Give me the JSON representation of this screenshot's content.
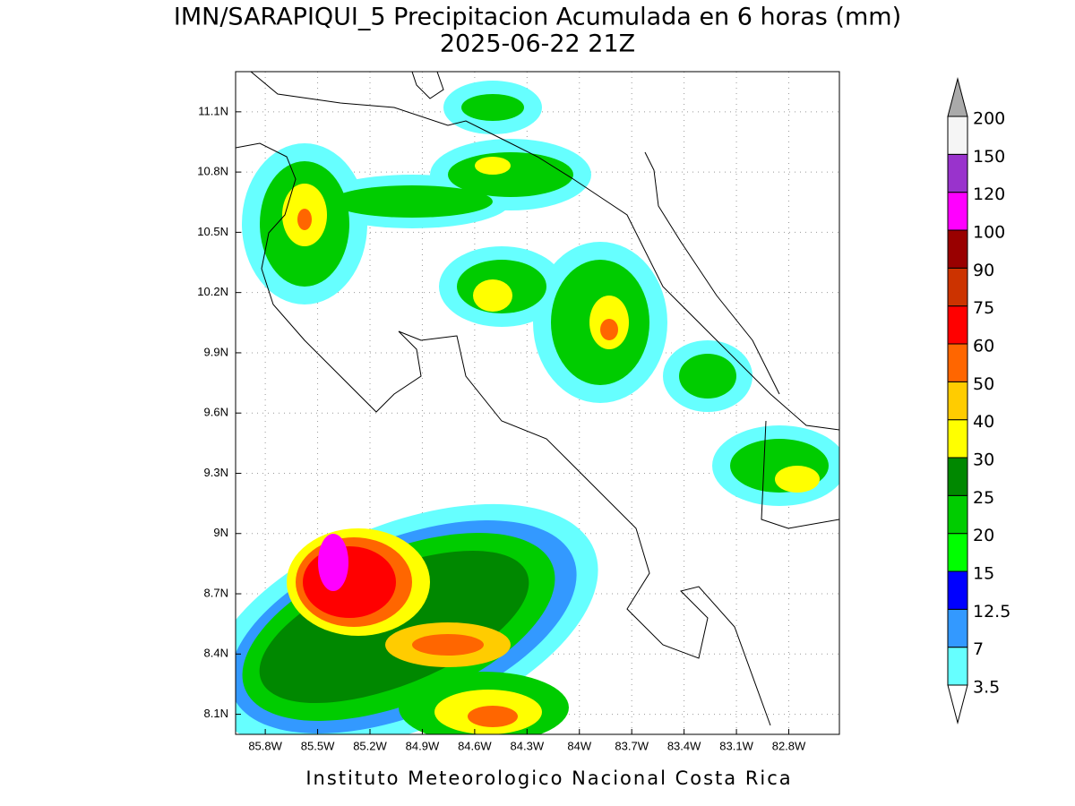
{
  "map": {
    "title": "IMN/SARAPIQUI_5 Precipitacion Acumulada en 6 horas (mm)",
    "subtitle": "2025-06-22 21Z",
    "footer": "Instituto Meteorologico Nacional Costa Rica",
    "xlim": [
      -85.97,
      -82.51
    ],
    "ylim": [
      8.0,
      11.3
    ],
    "lon_ticks": [
      {
        "value": -85.8,
        "label": "85.8W"
      },
      {
        "value": -85.5,
        "label": "85.5W"
      },
      {
        "value": -85.2,
        "label": "85.2W"
      },
      {
        "value": -84.9,
        "label": "84.9W"
      },
      {
        "value": -84.6,
        "label": "84.6W"
      },
      {
        "value": -84.3,
        "label": "84.3W"
      },
      {
        "value": -84.0,
        "label": "84W"
      },
      {
        "value": -83.7,
        "label": "83.7W"
      },
      {
        "value": -83.4,
        "label": "83.4W"
      },
      {
        "value": -83.1,
        "label": "83.1W"
      },
      {
        "value": -82.8,
        "label": "82.8W"
      }
    ],
    "lat_ticks": [
      {
        "value": 8.1,
        "label": "8.1N"
      },
      {
        "value": 8.4,
        "label": "8.4N"
      },
      {
        "value": 8.7,
        "label": "8.7N"
      },
      {
        "value": 9.0,
        "label": "9N"
      },
      {
        "value": 9.3,
        "label": "9.3N"
      },
      {
        "value": 9.6,
        "label": "9.6N"
      },
      {
        "value": 9.9,
        "label": "9.9N"
      },
      {
        "value": 10.2,
        "label": "10.2N"
      },
      {
        "value": 10.5,
        "label": "10.5N"
      },
      {
        "value": 10.8,
        "label": "10.8N"
      },
      {
        "value": 11.1,
        "label": "11.1N"
      }
    ],
    "grid": true,
    "colorbar": {
      "levels": [
        3.5,
        7,
        12.5,
        15,
        20,
        25,
        30,
        40,
        50,
        60,
        75,
        90,
        100,
        120,
        150,
        200
      ],
      "colors": [
        "#66ffff",
        "#3399ff",
        "#0000ff",
        "#00ff00",
        "#00cc00",
        "#008800",
        "#ffff00",
        "#ffcc00",
        "#ff6600",
        "#ff0000",
        "#cc3300",
        "#990000",
        "#ff00ff",
        "#9933cc",
        "#f5f5f5"
      ],
      "under_color": "#ffffff",
      "over_color": "#aaaaaa"
    }
  }
}
